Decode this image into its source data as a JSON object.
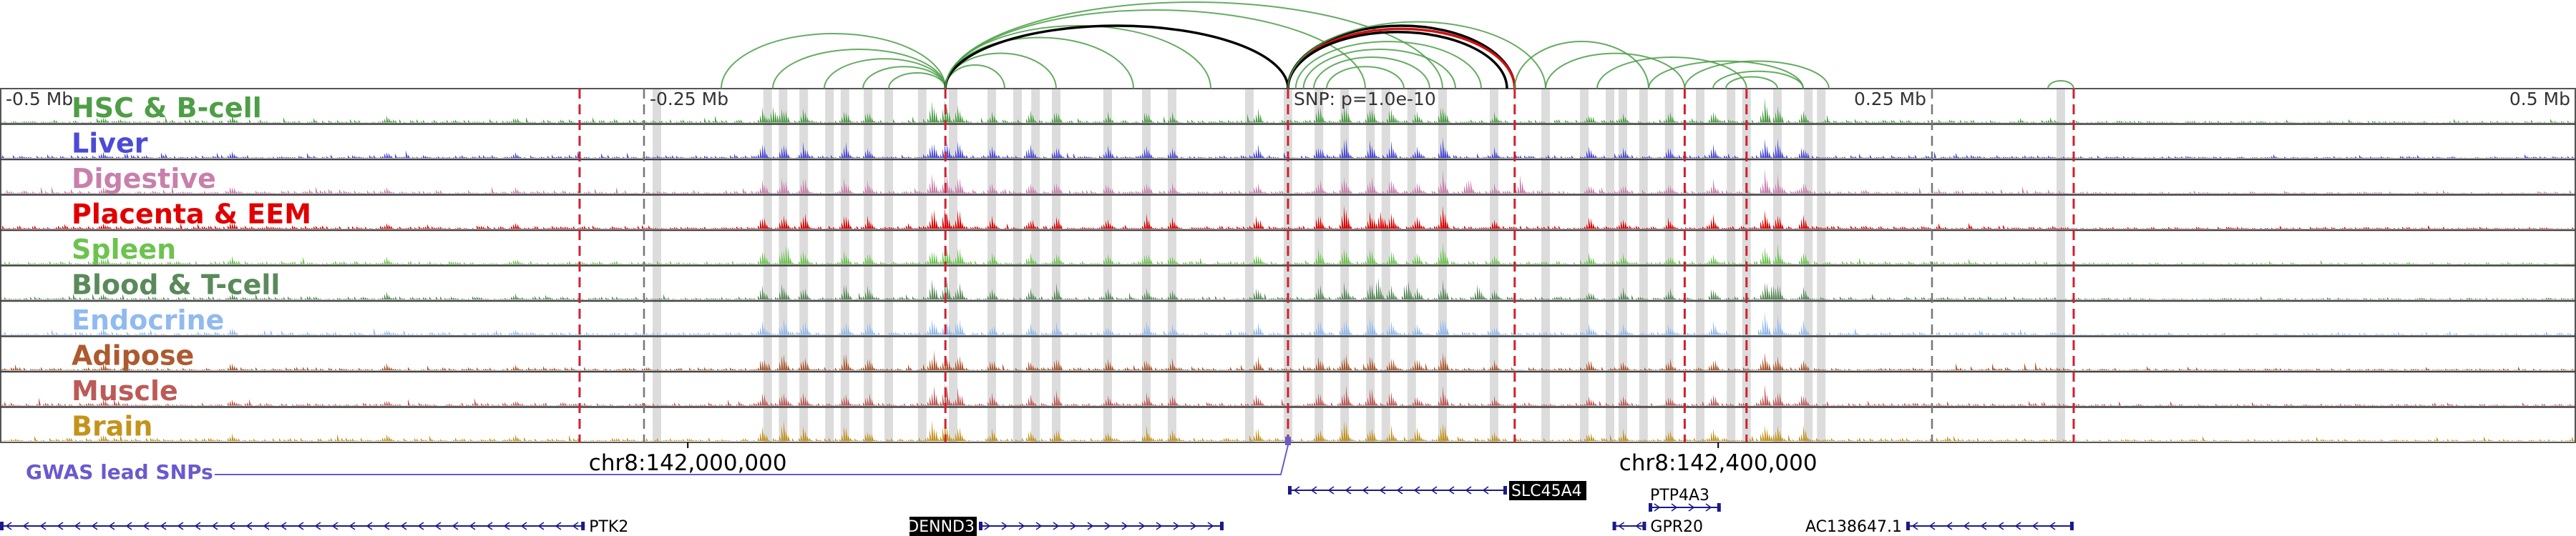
{
  "axis_labels": [
    {
      "label": "-0.5 Mb",
      "pos": -0.5,
      "side": "left"
    },
    {
      "label": "-0.25 Mb",
      "pos": -0.25,
      "side": "left"
    },
    {
      "label": "SNP: p=1.0e-10",
      "pos": 0.0,
      "side": "left"
    },
    {
      "label": "0.25 Mb",
      "pos": 0.25,
      "side": "right"
    },
    {
      "label": "0.5 Mb",
      "pos": 0.5,
      "side": "right"
    }
  ],
  "tracks": [
    {
      "label": "HSC & B-cell",
      "color": "#4d9e45"
    },
    {
      "label": "Liver",
      "color": "#4b4bd6"
    },
    {
      "label": "Digestive",
      "color": "#c97fab"
    },
    {
      "label": "Placenta & EEM",
      "color": "#e00000"
    },
    {
      "label": "Spleen",
      "color": "#6cc44e"
    },
    {
      "label": "Blood & T-cell",
      "color": "#5a8a5a"
    },
    {
      "label": "Endocrine",
      "color": "#90baf0"
    },
    {
      "label": "Adipose",
      "color": "#ad5a30"
    },
    {
      "label": "Muscle",
      "color": "#bd5a56"
    },
    {
      "label": "Brain",
      "color": "#c4931c"
    }
  ],
  "colors": {
    "highlight_band": "#d0d0d0",
    "dashed_red": "#d02030",
    "dashed_gray": "#777777",
    "gwas": "#6a5acd",
    "arc_green": "#4a9e45",
    "arc_black": "#000000",
    "arc_red": "#d01010"
  },
  "gwas": {
    "label": "GWAS lead SNPs"
  },
  "coordinates": [
    {
      "label": "chr8:142,000,000",
      "pos": -0.233
    },
    {
      "label": "chr8:142,400,000",
      "pos": 0.167
    }
  ],
  "genes": [
    {
      "name": "PTK2",
      "start": -0.5,
      "end": -0.273,
      "strand": "-",
      "row": 2,
      "highlight": false,
      "label_side": "right"
    },
    {
      "name": "DENND3",
      "start": -0.12,
      "end": -0.025,
      "strand": "+",
      "row": 2,
      "highlight": true,
      "label_side": "left"
    },
    {
      "name": "SLC45A4",
      "start": 0.0,
      "end": 0.085,
      "strand": "-",
      "row": 1,
      "highlight": true,
      "label_side": "right"
    },
    {
      "name": "PTP4A3",
      "start": 0.14,
      "end": 0.168,
      "strand": "+",
      "row": 1.5,
      "highlight": false,
      "label_side": "above"
    },
    {
      "name": "GPR20",
      "start": 0.126,
      "end": 0.139,
      "strand": "-",
      "row": 2,
      "highlight": false,
      "label_side": "right"
    },
    {
      "name": "AC138647.1",
      "start": 0.24,
      "end": 0.305,
      "strand": "-",
      "row": 2,
      "highlight": false,
      "label_side": "left"
    }
  ],
  "highlight_bands": [
    -0.245,
    -0.202,
    -0.196,
    -0.188,
    -0.178,
    -0.172,
    -0.163,
    -0.155,
    -0.142,
    -0.13,
    -0.115,
    -0.105,
    -0.098,
    -0.09,
    -0.07,
    -0.055,
    -0.045,
    -0.015,
    0.0,
    0.012,
    0.022,
    0.032,
    0.038,
    0.048,
    0.06,
    0.08,
    0.1,
    0.115,
    0.125,
    0.13,
    0.138,
    0.148,
    0.16,
    0.172,
    0.178,
    0.19,
    0.202,
    0.207,
    0.3
  ],
  "red_dashed_lines": [
    -0.275,
    -0.133,
    0.0,
    0.088,
    0.154,
    0.178,
    0.305
  ],
  "gray_dashed_lines": [
    -0.25,
    0.0,
    0.25
  ],
  "arcs": [
    {
      "from": -0.22,
      "to": -0.133,
      "h": 70,
      "color": "green"
    },
    {
      "from": -0.2,
      "to": -0.133,
      "h": 50,
      "color": "green"
    },
    {
      "from": -0.18,
      "to": -0.133,
      "h": 38,
      "color": "green"
    },
    {
      "from": -0.165,
      "to": -0.133,
      "h": 28,
      "color": "green"
    },
    {
      "from": -0.155,
      "to": -0.133,
      "h": 20,
      "color": "green"
    },
    {
      "from": -0.133,
      "to": -0.11,
      "h": 30,
      "color": "green"
    },
    {
      "from": -0.133,
      "to": -0.09,
      "h": 45,
      "color": "green"
    },
    {
      "from": -0.133,
      "to": -0.06,
      "h": 65,
      "color": "green"
    },
    {
      "from": -0.133,
      "to": -0.03,
      "h": 80,
      "color": "green"
    },
    {
      "from": -0.133,
      "to": 0.0,
      "h": 80,
      "color": "black"
    },
    {
      "from": -0.133,
      "to": 0.03,
      "h": 100,
      "color": "green"
    },
    {
      "from": -0.133,
      "to": 0.06,
      "h": 110,
      "color": "green"
    },
    {
      "from": 0.0,
      "to": 0.088,
      "h": 80,
      "color": "black"
    },
    {
      "from": 0.0,
      "to": 0.088,
      "h": 76,
      "color": "red"
    },
    {
      "from": 0.0,
      "to": 0.085,
      "h": 72,
      "color": "black"
    },
    {
      "from": 0.003,
      "to": 0.075,
      "h": 60,
      "color": "green"
    },
    {
      "from": 0.006,
      "to": 0.065,
      "h": 50,
      "color": "green"
    },
    {
      "from": 0.01,
      "to": 0.055,
      "h": 40,
      "color": "green"
    },
    {
      "from": 0.015,
      "to": 0.045,
      "h": 28,
      "color": "green"
    },
    {
      "from": 0.0,
      "to": 0.1,
      "h": 85,
      "color": "green"
    },
    {
      "from": 0.088,
      "to": 0.14,
      "h": 60,
      "color": "green"
    },
    {
      "from": 0.1,
      "to": 0.154,
      "h": 45,
      "color": "green"
    },
    {
      "from": 0.12,
      "to": 0.178,
      "h": 40,
      "color": "green"
    },
    {
      "from": 0.14,
      "to": 0.2,
      "h": 35,
      "color": "green"
    },
    {
      "from": 0.154,
      "to": 0.21,
      "h": 35,
      "color": "green"
    },
    {
      "from": 0.165,
      "to": 0.2,
      "h": 22,
      "color": "green"
    },
    {
      "from": 0.17,
      "to": 0.19,
      "h": 15,
      "color": "green"
    },
    {
      "from": 0.295,
      "to": 0.305,
      "h": 10,
      "color": "green"
    }
  ],
  "peaks": [
    {
      "pos": -0.204,
      "h": 0.6
    },
    {
      "pos": -0.196,
      "h": 0.8
    },
    {
      "pos": -0.188,
      "h": 0.7
    },
    {
      "pos": -0.172,
      "h": 0.7
    },
    {
      "pos": -0.163,
      "h": 0.6
    },
    {
      "pos": -0.138,
      "h": 0.9
    },
    {
      "pos": -0.133,
      "h": 0.95
    },
    {
      "pos": -0.128,
      "h": 0.8
    },
    {
      "pos": -0.115,
      "h": 0.5
    },
    {
      "pos": -0.1,
      "h": 0.5
    },
    {
      "pos": -0.09,
      "h": 0.6
    },
    {
      "pos": -0.07,
      "h": 0.5
    },
    {
      "pos": -0.055,
      "h": 0.55
    },
    {
      "pos": -0.045,
      "h": 0.45
    },
    {
      "pos": -0.012,
      "h": 0.6
    },
    {
      "pos": 0.012,
      "h": 0.7
    },
    {
      "pos": 0.022,
      "h": 0.9
    },
    {
      "pos": 0.032,
      "h": 0.8
    },
    {
      "pos": 0.04,
      "h": 0.65
    },
    {
      "pos": 0.05,
      "h": 0.55
    },
    {
      "pos": 0.06,
      "h": 0.85
    },
    {
      "pos": 0.08,
      "h": 0.4
    },
    {
      "pos": 0.117,
      "h": 0.5
    },
    {
      "pos": 0.13,
      "h": 0.45
    },
    {
      "pos": 0.148,
      "h": 0.5
    },
    {
      "pos": 0.165,
      "h": 0.55
    },
    {
      "pos": 0.185,
      "h": 0.9
    },
    {
      "pos": 0.19,
      "h": 0.75
    },
    {
      "pos": 0.2,
      "h": 0.6
    },
    {
      "pos": -0.41,
      "h": 0.35
    },
    {
      "pos": -0.35,
      "h": 0.3
    },
    {
      "pos": -0.3,
      "h": 0.25
    },
    {
      "pos": -0.46,
      "h": 0.3
    }
  ],
  "track_peaks": {
    "0": [
      {
        "pos": 0.185,
        "h": 1.0
      },
      {
        "pos": -0.2,
        "h": 0.9
      }
    ],
    "3": [
      {
        "pos": 0.022,
        "h": 1.0
      },
      {
        "pos": 0.036,
        "h": 0.95
      }
    ],
    "4": [
      {
        "pos": -0.195,
        "h": 1.0
      },
      {
        "pos": -0.133,
        "h": 1.0
      },
      {
        "pos": 0.185,
        "h": 0.7
      }
    ],
    "5": [
      {
        "pos": 0.035,
        "h": 1.0
      },
      {
        "pos": 0.046,
        "h": 0.9
      },
      {
        "pos": 0.074,
        "h": 0.8
      },
      {
        "pos": 0.188,
        "h": 1.0
      }
    ],
    "2": [
      {
        "pos": 0.07,
        "h": 0.9
      },
      {
        "pos": 0.09,
        "h": 0.7
      }
    ]
  }
}
